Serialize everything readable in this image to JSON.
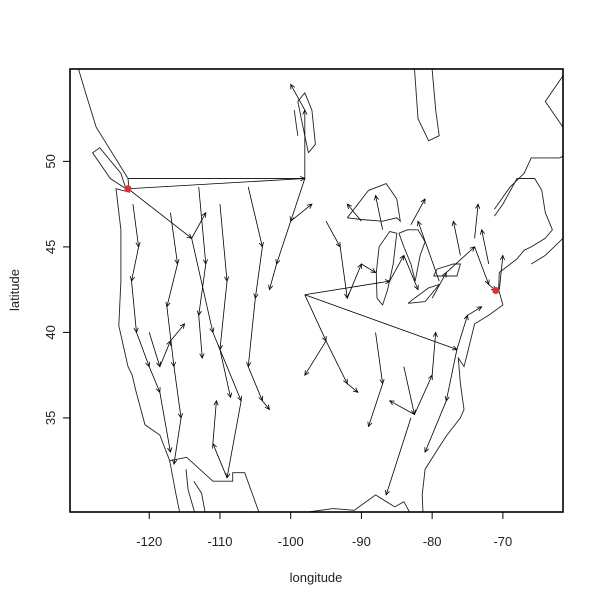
{
  "chart_data": {
    "type": "map-arrows",
    "xlabel": "longitude",
    "ylabel": "latitude",
    "xlim": [
      -131.2,
      -61.5
    ],
    "ylim": [
      29.5,
      55.4
    ],
    "x_ticks": [
      -120,
      -110,
      -100,
      -90,
      -80,
      -70
    ],
    "y_ticks": [
      35,
      40,
      45,
      50
    ],
    "grid": false,
    "colors": {
      "lines": "#000000",
      "highlight": "#e03030"
    },
    "highlight_points": [
      {
        "lon": -123.0,
        "lat": 48.4
      },
      {
        "lon": -71.0,
        "lat": 42.45
      }
    ],
    "arrows": [
      [
        -123,
        48.4,
        -98,
        49
      ],
      [
        -98,
        49,
        -98,
        53
      ],
      [
        -98,
        49,
        -100,
        46.5
      ],
      [
        -98,
        42.2,
        -76.5,
        39
      ],
      [
        -98,
        42.2,
        -86,
        43
      ],
      [
        -98,
        42.2,
        -95,
        39.5
      ],
      [
        -95,
        39.5,
        -98,
        37.5
      ],
      [
        -95,
        39.5,
        -92,
        37
      ],
      [
        -123,
        48.4,
        -114,
        45.5
      ],
      [
        -114,
        45.5,
        -112,
        47
      ],
      [
        -114,
        45.5,
        -111,
        40
      ],
      [
        -111,
        40,
        -107,
        36
      ],
      [
        -107,
        36,
        -109,
        31.5
      ],
      [
        -109,
        31.5,
        -111,
        33.5
      ],
      [
        -111,
        33.5,
        -110.5,
        36
      ],
      [
        -122.3,
        47.5,
        -121.5,
        45
      ],
      [
        -121.5,
        45,
        -122.5,
        43
      ],
      [
        -122.5,
        43,
        -121.8,
        40
      ],
      [
        -121.8,
        40,
        -120,
        38
      ],
      [
        -120,
        38,
        -118.5,
        36.5
      ],
      [
        -118.5,
        36.5,
        -117,
        33
      ],
      [
        -117,
        47,
        -116,
        44
      ],
      [
        -116,
        44,
        -117.5,
        41.5
      ],
      [
        -117.5,
        41.5,
        -116.5,
        38
      ],
      [
        -116.5,
        38,
        -115.5,
        35
      ],
      [
        -115.5,
        35,
        -116.5,
        32.3
      ],
      [
        -113,
        48.5,
        -112,
        44
      ],
      [
        -112,
        44,
        -113,
        41
      ],
      [
        -113,
        41,
        -112.5,
        38.5
      ],
      [
        -110,
        47.5,
        -109,
        43
      ],
      [
        -109,
        43,
        -110,
        39
      ],
      [
        -110,
        39,
        -108.5,
        36.2
      ],
      [
        -106,
        48.5,
        -104,
        45
      ],
      [
        -104,
        45,
        -105,
        42
      ],
      [
        -105,
        42,
        -106,
        38
      ],
      [
        -106,
        38,
        -104,
        36
      ],
      [
        -104,
        36,
        -103,
        35.5
      ],
      [
        -120,
        40,
        -118.5,
        38
      ],
      [
        -118.5,
        38,
        -117,
        39.5
      ],
      [
        -117,
        39.5,
        -115,
        40.5
      ],
      [
        -100,
        46.5,
        -102,
        44
      ],
      [
        -102,
        44,
        -103,
        42.5
      ],
      [
        -100,
        46.5,
        -97,
        47.5
      ],
      [
        -98,
        53,
        -100,
        54.5
      ],
      [
        -95,
        46.5,
        -93,
        45
      ],
      [
        -93,
        45,
        -92,
        42
      ],
      [
        -92,
        42,
        -90,
        44
      ],
      [
        -90,
        44,
        -88,
        43.5
      ],
      [
        -92,
        37,
        -90.5,
        36.5
      ],
      [
        -88,
        40,
        -87,
        37
      ],
      [
        -87,
        37,
        -89,
        34.5
      ],
      [
        -84,
        38,
        -82.5,
        35.2
      ],
      [
        -82.5,
        35.2,
        -80,
        37.5
      ],
      [
        -82.5,
        35.2,
        -86,
        36
      ],
      [
        -80,
        37.5,
        -79.5,
        40
      ],
      [
        -86,
        43,
        -84,
        44.5
      ],
      [
        -84,
        44.5,
        -82,
        42.5
      ],
      [
        -80,
        42,
        -78,
        43.5
      ],
      [
        -78,
        43.5,
        -74,
        45
      ],
      [
        -74,
        45,
        -72,
        42.8
      ],
      [
        -72,
        42.8,
        -71,
        42.45
      ],
      [
        -76.5,
        39,
        -75,
        41
      ],
      [
        -75,
        41,
        -73,
        41.5
      ],
      [
        -76.5,
        39,
        -78,
        36
      ],
      [
        -78,
        36,
        -81,
        33
      ],
      [
        -83,
        35,
        -86.5,
        30.5
      ],
      [
        -74,
        45.5,
        -73.5,
        47.5
      ],
      [
        -76,
        44.5,
        -77,
        46.5
      ],
      [
        -79,
        43,
        -82,
        46.5
      ],
      [
        -87,
        46,
        -88,
        48
      ],
      [
        -90,
        46.5,
        -92,
        47.5
      ],
      [
        -83,
        46.3,
        -81,
        47.8
      ],
      [
        -72,
        44,
        -73,
        46
      ],
      [
        -70.5,
        42.5,
        -70,
        44.5
      ]
    ]
  }
}
